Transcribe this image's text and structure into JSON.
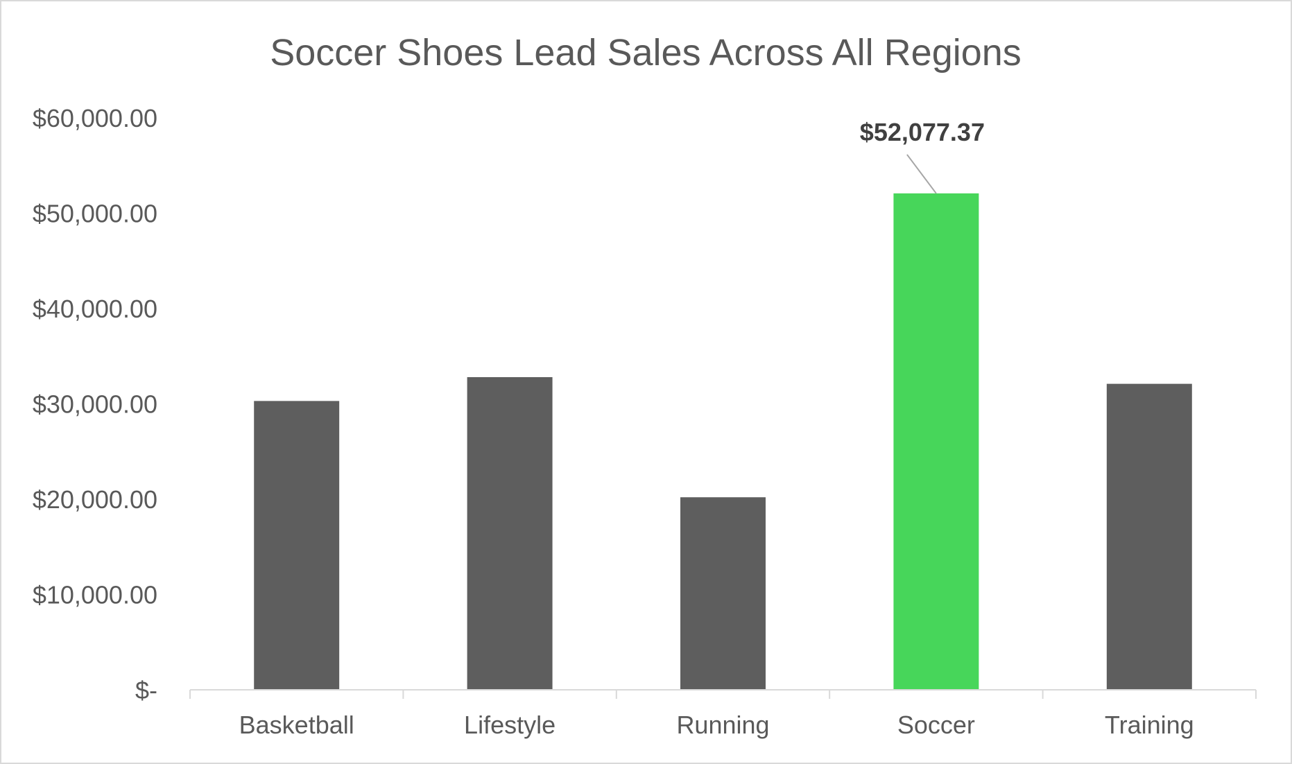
{
  "chart_data": {
    "type": "bar",
    "title": "Soccer Shoes Lead Sales Across All Regions",
    "xlabel": "",
    "ylabel": "",
    "categories": [
      "Basketball",
      "Lifestyle",
      "Running",
      "Soccer",
      "Training"
    ],
    "values": [
      30300,
      32800,
      20200,
      52077.37,
      32100
    ],
    "ylim": [
      0,
      60000
    ],
    "yticks": [
      {
        "value": 0,
        "label": "$-"
      },
      {
        "value": 10000,
        "label": "$10,000.00"
      },
      {
        "value": 20000,
        "label": "$20,000.00"
      },
      {
        "value": 30000,
        "label": "$30,000.00"
      },
      {
        "value": 40000,
        "label": "$40,000.00"
      },
      {
        "value": 50000,
        "label": "$50,000.00"
      },
      {
        "value": 60000,
        "label": "$60,000.00"
      }
    ],
    "grid": false,
    "legend": "none",
    "highlight": {
      "category": "Soccer",
      "label": "$52,077.37"
    },
    "colors": {
      "bar": "#5e5e5e",
      "highlight": "#47d65a",
      "axis": "#d9d9d9",
      "text": "#595959"
    }
  }
}
